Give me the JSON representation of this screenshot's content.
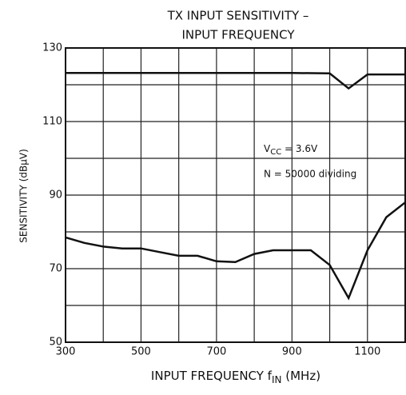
{
  "chart_data": {
    "type": "line",
    "title": [
      "TX INPUT SENSITIVITY –",
      "INPUT FREQUENCY"
    ],
    "x_label": [
      "INPUT FREQUENCY   f",
      "IN",
      "   (MHz)"
    ],
    "y_label": "SENSITIVITY   (dBμV)",
    "annotations": [
      [
        "V",
        "CC",
        " = 3.6V"
      ],
      [
        "N = 50000 dividing"
      ]
    ],
    "xlim": [
      300,
      1200
    ],
    "xticks": [
      300,
      500,
      700,
      900,
      1100
    ],
    "xgrid": [
      300,
      400,
      500,
      600,
      700,
      800,
      900,
      1000,
      1100,
      1200
    ],
    "ylim": [
      50,
      130
    ],
    "yticks": [
      50,
      70,
      90,
      110,
      130
    ],
    "ygrid": [
      50,
      60,
      70,
      80,
      90,
      100,
      110,
      120,
      130
    ],
    "grid": true,
    "series": [
      {
        "color": "#111",
        "x": [
          300,
          400,
          500,
          600,
          700,
          800,
          900,
          1000,
          1050,
          1100,
          1150,
          1200
        ],
        "values": [
          123.2,
          123.2,
          123.2,
          123.2,
          123.2,
          123.2,
          123.2,
          123.1,
          119,
          122.8,
          122.8,
          122.8
        ]
      },
      {
        "color": "#111",
        "x": [
          300,
          350,
          400,
          450,
          500,
          550,
          600,
          650,
          700,
          750,
          800,
          850,
          900,
          950,
          1000,
          1050,
          1100,
          1150,
          1200
        ],
        "values": [
          78.5,
          77,
          76,
          75.5,
          75.5,
          74.5,
          73.5,
          73.5,
          72,
          71.8,
          74,
          75,
          75,
          75,
          71,
          62,
          75,
          84,
          88
        ]
      }
    ]
  }
}
